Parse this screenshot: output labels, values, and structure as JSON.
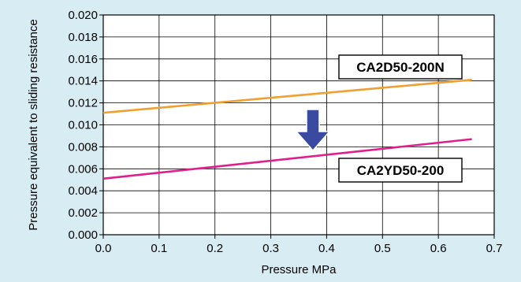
{
  "chart_data": {
    "type": "line",
    "title": "",
    "xlabel": "Pressure MPa",
    "ylabel": "Pressure equivalent to sliding resistance",
    "xlim": [
      0.0,
      0.7
    ],
    "ylim": [
      0.0,
      0.02
    ],
    "x_ticks": [
      "0.0",
      "0.1",
      "0.2",
      "0.3",
      "0.4",
      "0.5",
      "0.6",
      "0.7"
    ],
    "y_ticks": [
      "0.000",
      "0.002",
      "0.004",
      "0.006",
      "0.008",
      "0.010",
      "0.012",
      "0.014",
      "0.016",
      "0.018",
      "0.020"
    ],
    "grid": true,
    "series": [
      {
        "name": "CA2D50-200N",
        "color": "#f0a030",
        "x": [
          0.0,
          0.66
        ],
        "y": [
          0.0111,
          0.0141
        ]
      },
      {
        "name": "CA2YD50-200",
        "color": "#e0208a",
        "x": [
          0.0,
          0.66
        ],
        "y": [
          0.0051,
          0.0087
        ]
      }
    ],
    "annotations": [
      {
        "type": "arrow-down",
        "color": "#3a4aa0",
        "meaning": "reduction"
      }
    ],
    "background_color": "#d8ecf4",
    "plot_background_color": "#ffffff"
  }
}
